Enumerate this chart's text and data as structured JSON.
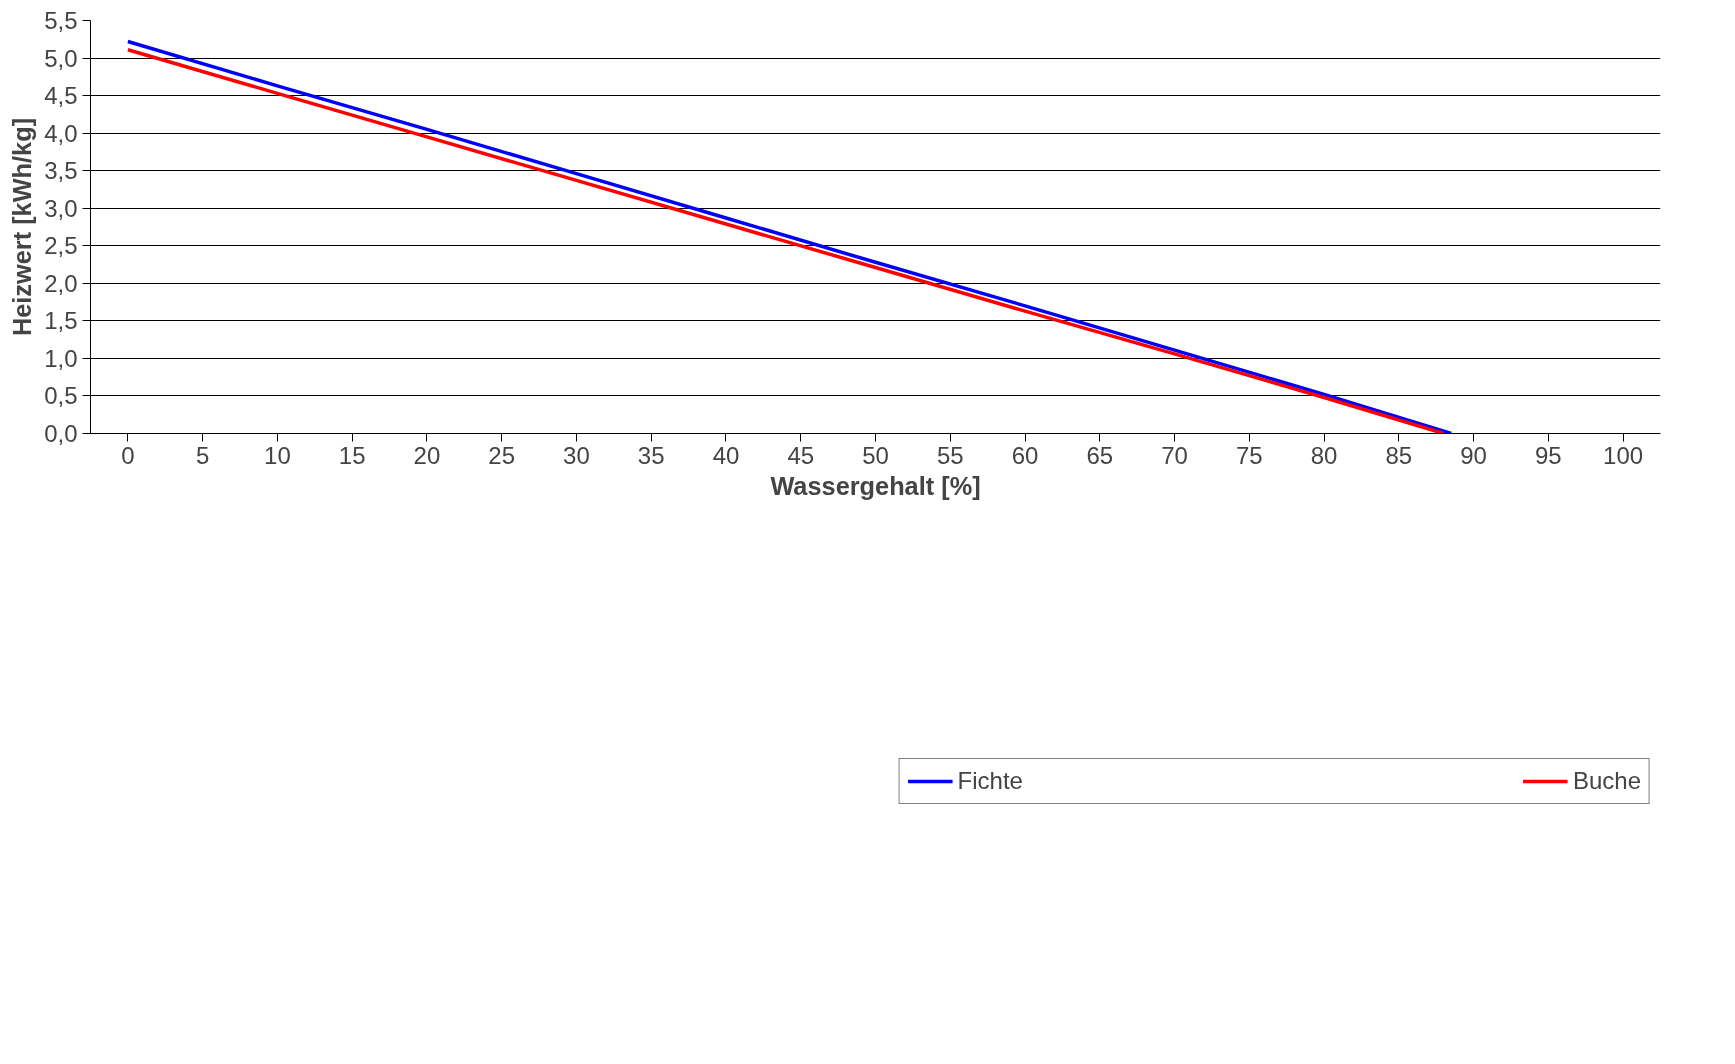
{
  "chart_data": {
    "type": "line",
    "xlabel": "Wassergehalt [%]",
    "ylabel": "Heizwert [kWh/kg]",
    "x": [
      0,
      10,
      20,
      30,
      40,
      50,
      60,
      70,
      80,
      88.5
    ],
    "series": [
      {
        "name": "Fichte",
        "color": "#0000ff",
        "values": [
          5.22,
          4.63,
          4.05,
          3.46,
          2.87,
          2.28,
          1.7,
          1.11,
          0.52,
          0
        ]
      },
      {
        "name": "Buche",
        "color": "#ff0000",
        "x": [
          0,
          10,
          20,
          30,
          40,
          50,
          60,
          70,
          80,
          88
        ],
        "values": [
          5.11,
          4.53,
          3.95,
          3.37,
          2.79,
          2.21,
          1.63,
          1.06,
          0.48,
          0
        ]
      }
    ],
    "xlim": [
      -2.5,
      102.5
    ],
    "xticks": [
      0,
      5,
      10,
      15,
      20,
      25,
      30,
      35,
      40,
      45,
      50,
      55,
      60,
      65,
      70,
      75,
      80,
      85,
      90,
      95,
      100
    ],
    "ylim": [
      0,
      5.5
    ],
    "yticks": [
      {
        "value": 0,
        "label": "0,0"
      },
      {
        "value": 0.5,
        "label": "0,5"
      },
      {
        "value": 1,
        "label": "1,0"
      },
      {
        "value": 1.5,
        "label": "1,5"
      },
      {
        "value": 2,
        "label": "2,0"
      },
      {
        "value": 2.5,
        "label": "2,5"
      },
      {
        "value": 3,
        "label": "3,0"
      },
      {
        "value": 3.5,
        "label": "3,5"
      },
      {
        "value": 4,
        "label": "4,0"
      },
      {
        "value": 4.5,
        "label": "4,5"
      },
      {
        "value": 5,
        "label": "5,0"
      },
      {
        "value": 5.5,
        "label": "5,5"
      }
    ],
    "grid": "y",
    "legend": "bottom",
    "marker": "none",
    "line_style": "solid"
  }
}
